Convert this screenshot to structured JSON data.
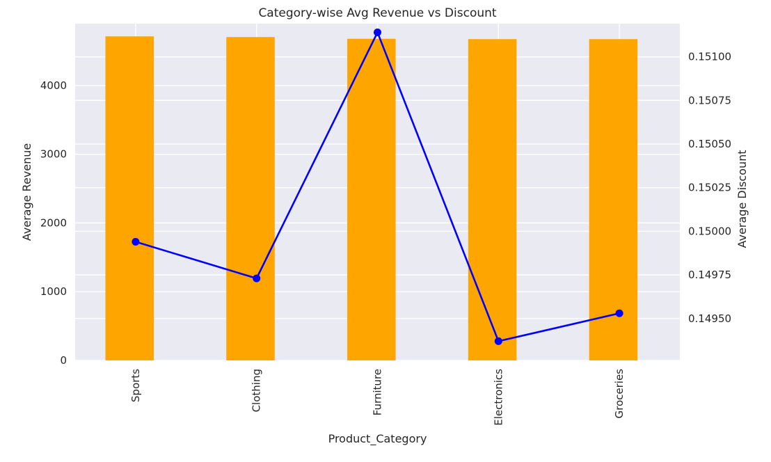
{
  "chart_data": {
    "type": "bar",
    "title": "Category-wise Avg Revenue vs Discount",
    "xlabel": "Product_Category",
    "ylabel": "Average Revenue",
    "y2label": "Average Discount",
    "categories": [
      "Sports",
      "Clothing",
      "Furniture",
      "Electronics",
      "Groceries"
    ],
    "series": [
      {
        "type": "bar",
        "axis": "left",
        "color": "#ffa500",
        "values": [
          4715,
          4705,
          4680,
          4675,
          4675
        ]
      },
      {
        "type": "line",
        "axis": "right",
        "color": "#0000ff",
        "marker": "circle",
        "values": [
          0.14994,
          0.14973,
          0.15114,
          0.14937,
          0.14953
        ]
      }
    ],
    "ylim": [
      0,
      4900
    ],
    "y2lim": [
      0.14926,
      0.15119
    ],
    "yticks": [
      0,
      1000,
      2000,
      3000,
      4000
    ],
    "y2ticks": [
      0.1495,
      0.14975,
      0.15,
      0.15025,
      0.1505,
      0.15075,
      0.151
    ],
    "y2tick_labels": [
      "0.14950",
      "0.14975",
      "0.15000",
      "0.15025",
      "0.15050",
      "0.15075",
      "0.15100"
    ],
    "grid": true,
    "x_tick_rotation": "vertical",
    "background": "#eaeaf2"
  }
}
